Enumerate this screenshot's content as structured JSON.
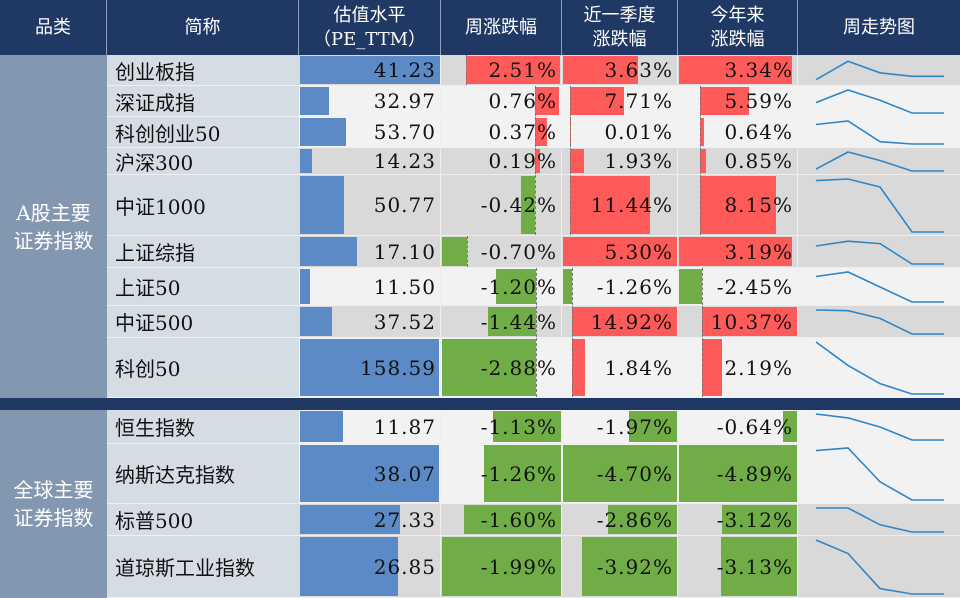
{
  "header": {
    "category": "品类",
    "name": "简称",
    "pe_line1": "估值水平",
    "pe_line2": "（PE_TTM）",
    "week": "周涨跌幅",
    "quarter_line1": "近一季度",
    "quarter_line2": "涨跌幅",
    "ytd_line1": "今年来",
    "ytd_line2": "涨跌幅",
    "trend": "周走势图"
  },
  "colors": {
    "header_bg": "#1f3864",
    "pe_bar": "#5b8ac6",
    "up": "#ff5a5a",
    "down": "#70ad47",
    "trend_line": "#2e86c9"
  },
  "groups": [
    {
      "category_line1": "A股主要",
      "category_line2": "证券指数",
      "rows": [
        {
          "name": "创业板指",
          "pe": "41.23",
          "week": "2.51%",
          "quarter": "3.63%",
          "ytd": "3.34%",
          "trend": [
            0.1,
            0.9,
            0.4,
            0.25,
            0.25
          ]
        },
        {
          "name": "深证成指",
          "pe": "32.97",
          "week": "0.76%",
          "quarter": "7.71%",
          "ytd": "5.59%",
          "trend": [
            0.45,
            1,
            0.55,
            0,
            0
          ]
        },
        {
          "name": "科创创业50",
          "pe": "53.70",
          "week": "0.37%",
          "quarter": "0.01%",
          "ytd": "0.64%",
          "trend": [
            0.85,
            1,
            0.1,
            0,
            0
          ]
        },
        {
          "name": "沪深300",
          "pe": "14.23",
          "week": "0.19%",
          "quarter": "1.93%",
          "ytd": "0.85%",
          "trend": [
            0.1,
            1,
            0.55,
            0,
            0
          ]
        },
        {
          "name": "中证1000",
          "pe": "50.77",
          "week": "-0.42%",
          "quarter": "11.44%",
          "ytd": "8.15%",
          "trend": [
            0.97,
            1,
            0.85,
            0,
            0
          ]
        },
        {
          "name": "上证综指",
          "pe": "17.10",
          "week": "-0.70%",
          "quarter": "5.30%",
          "ytd": "3.19%",
          "trend": [
            0.75,
            0.95,
            0.85,
            0,
            0
          ]
        },
        {
          "name": "上证50",
          "pe": "11.50",
          "week": "-1.20%",
          "quarter": "-1.26%",
          "ytd": "-2.45%",
          "trend": [
            0.85,
            1,
            0.5,
            0,
            0
          ]
        },
        {
          "name": "中证500",
          "pe": "37.52",
          "week": "-1.44%",
          "quarter": "14.92%",
          "ytd": "10.37%",
          "trend": [
            1,
            0.97,
            0.65,
            0,
            0
          ]
        },
        {
          "name": "科创50",
          "pe": "158.59",
          "week": "-2.88%",
          "quarter": "1.84%",
          "ytd": "2.19%",
          "trend": [
            1,
            0.55,
            0.2,
            0,
            0
          ]
        }
      ]
    },
    {
      "category_line1": "全球主要",
      "category_line2": "证券指数",
      "rows": [
        {
          "name": "恒生指数",
          "pe": "11.87",
          "week": "-1.13%",
          "quarter": "-1.97%",
          "ytd": "-0.64%",
          "trend": [
            1,
            0.85,
            0.5,
            0,
            0
          ]
        },
        {
          "name": "纳斯达克指数",
          "pe": "38.07",
          "week": "-1.26%",
          "quarter": "-4.70%",
          "ytd": "-4.89%",
          "trend": [
            0.95,
            1,
            0.35,
            0,
            0
          ]
        },
        {
          "name": "标普500",
          "pe": "27.33",
          "week": "-1.60%",
          "quarter": "-2.86%",
          "ytd": "-3.12%",
          "trend": [
            1,
            1,
            0.3,
            0,
            0
          ]
        },
        {
          "name": "道琼斯工业指数",
          "pe": "26.85",
          "week": "-1.99%",
          "quarter": "-3.92%",
          "ytd": "-3.13%",
          "trend": [
            1,
            0.75,
            0.1,
            0,
            0
          ]
        }
      ]
    }
  ]
}
